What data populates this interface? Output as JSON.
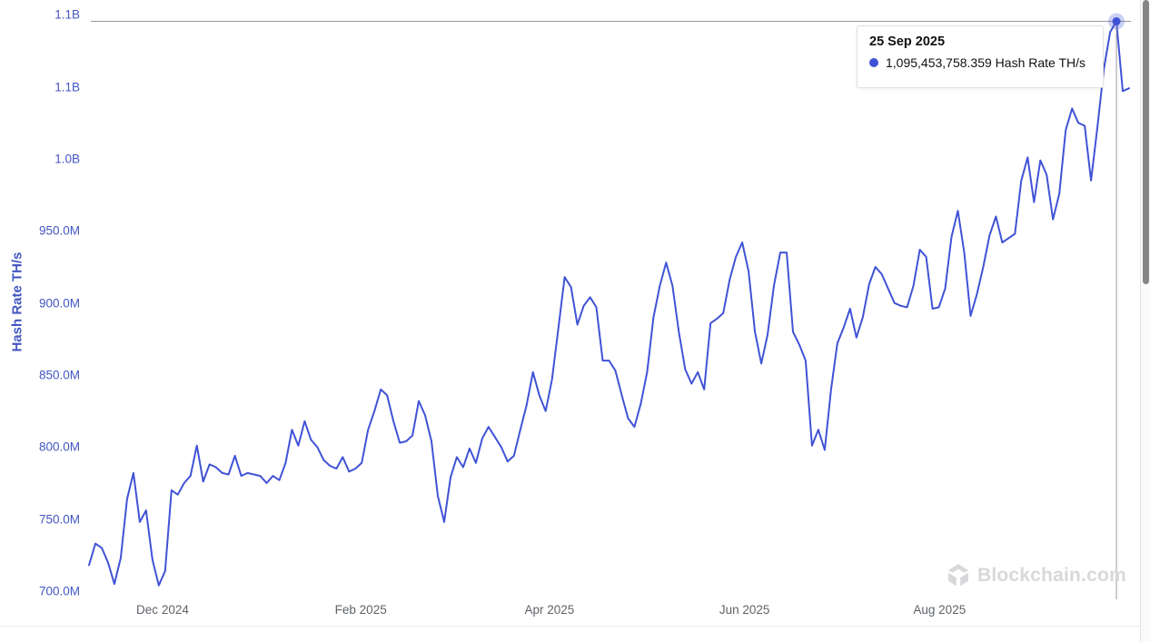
{
  "colors": {
    "line": "#4053d6",
    "halo": "rgba(64,83,214,0.28)",
    "axis_label_blue": "#4357c2",
    "month_label_gray": "#5f6368",
    "crosshair": "#9a9a9a",
    "tooltip_text": "#111111",
    "watermark": "#d7d8da"
  },
  "y_axis": {
    "title": "Hash Rate TH/s",
    "ticks": [
      {
        "label": "1.1B",
        "value": 1100
      },
      {
        "label": "1.1B",
        "value": 1050
      },
      {
        "label": "1.0B",
        "value": 1000
      },
      {
        "label": "950.0M",
        "value": 950
      },
      {
        "label": "900.0M",
        "value": 900
      },
      {
        "label": "850.0M",
        "value": 850
      },
      {
        "label": "800.0M",
        "value": 800
      },
      {
        "label": "750.0M",
        "value": 750
      },
      {
        "label": "700.0M",
        "value": 700
      }
    ]
  },
  "x_axis": {
    "ticks": [
      {
        "label": "Dec 2024",
        "date": "2024-12-01"
      },
      {
        "label": "Feb 2025",
        "date": "2025-02-01"
      },
      {
        "label": "Apr 2025",
        "date": "2025-04-01"
      },
      {
        "label": "Jun 2025",
        "date": "2025-06-01"
      },
      {
        "label": "Aug 2025",
        "date": "2025-08-01"
      }
    ]
  },
  "tooltip": {
    "date": "25 Sep 2025",
    "value_text": "1,095,453,758.359 Hash Rate TH/s"
  },
  "watermark": {
    "text": "Blockchain.com"
  },
  "chart_data": {
    "type": "line",
    "title": "",
    "xlabel": "",
    "ylabel": "Hash Rate TH/s",
    "ylim_millions": [
      700,
      1100
    ],
    "x_range": [
      "2024-11-08",
      "2025-09-29"
    ],
    "grid": false,
    "legend": false,
    "hover_point": {
      "date": "2025-09-25",
      "value_ths": 1095453758.359,
      "series_index": 162
    },
    "series": [
      {
        "name": "Hash Rate TH/s",
        "unit": "TH/s (millions)",
        "start_date": "2024-11-08",
        "end_date": "2025-09-29",
        "values_millions": [
          718,
          733,
          730,
          720,
          705,
          723,
          764,
          782,
          748,
          756,
          722,
          704,
          714,
          770,
          767,
          775,
          780,
          801,
          776,
          788,
          786,
          782,
          781,
          794,
          780,
          782,
          781,
          780,
          775,
          780,
          777,
          789,
          812,
          801,
          818,
          805,
          800,
          791,
          787,
          785,
          793,
          783,
          785,
          789,
          812,
          825,
          840,
          836,
          818,
          803,
          804,
          808,
          832,
          822,
          804,
          766,
          748,
          779,
          793,
          786,
          799,
          789,
          806,
          814,
          807,
          800,
          790,
          794,
          812,
          829,
          852,
          836,
          825,
          847,
          882,
          918,
          911,
          885,
          898,
          904,
          897,
          860,
          860,
          853,
          836,
          820,
          814,
          830,
          852,
          890,
          912,
          928,
          912,
          880,
          854,
          844,
          852,
          840,
          886,
          889,
          893,
          916,
          932,
          942,
          922,
          880,
          858,
          878,
          912,
          935,
          935,
          880,
          871,
          860,
          801,
          812,
          798,
          840,
          872,
          883,
          896,
          876,
          890,
          913,
          925,
          920,
          910,
          900,
          898,
          897,
          912,
          937,
          932,
          896,
          897,
          910,
          946,
          964,
          935,
          891,
          906,
          925,
          947,
          960,
          942,
          945,
          948,
          985,
          1001,
          970,
          999,
          989,
          958,
          976,
          1020,
          1035,
          1025,
          1023,
          985,
          1022,
          1062,
          1088,
          1095.453758359,
          1047,
          1049
        ]
      }
    ]
  }
}
